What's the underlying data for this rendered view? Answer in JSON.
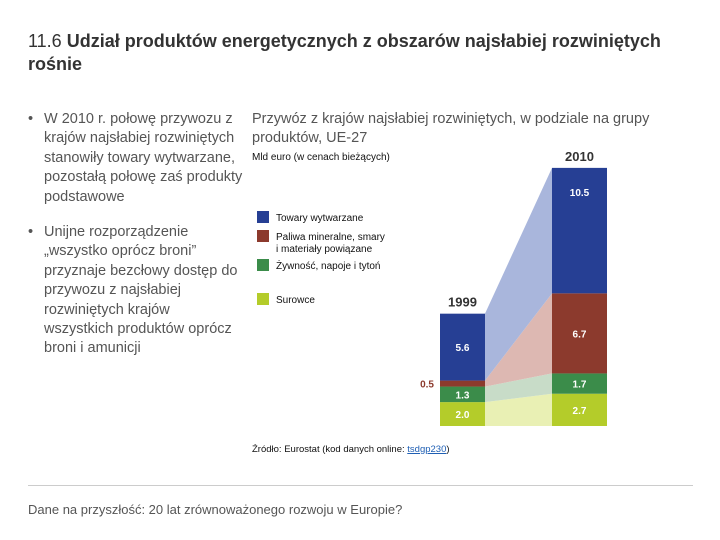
{
  "slide": {
    "title_number": "11.6",
    "title_text": "Udział produktów energetycznych z obszarów najsłabiej rozwiniętych rośnie",
    "bullet_symbol": "•",
    "bullets": [
      "W 2010 r. połowę przywozu z krajów najsłabiej rozwiniętych stanowiły towary wytwarzane, pozostałą połowę zaś produkty podstawowe",
      "Unijne rozporządzenie „wszystko oprócz broni” przyznaje bezcłowy dostęp do przywozu z najsłabiej rozwiniętych krajów wszystkich produktów oprócz broni i amunicji"
    ],
    "footer": "Dane na przyszłość: 20 lat zrównoważonego rozwoju w Europie?"
  },
  "chart_data": {
    "type": "bar",
    "title": "Przywóz z krajów najsłabiej rozwiniętych, w podziale na grupy produktów, UE-27",
    "unit": "Mld euro (w cenach bieżących)",
    "categories": [
      "1999",
      "2010"
    ],
    "series": [
      {
        "name": "Surowce",
        "values": [
          2.0,
          2.7
        ],
        "labels": [
          "2.0",
          "2.7"
        ],
        "color": "#b4cc2a",
        "band_color": "#e9f0b4"
      },
      {
        "name": "Żywność, napoje i tytoń",
        "values": [
          1.3,
          1.7
        ],
        "labels": [
          "1.3",
          "1.7"
        ],
        "color": "#3b8c4a",
        "band_color": "#c8dcc8"
      },
      {
        "name": "Paliwa mineralne, smary i materiały powiązane",
        "values": [
          0.5,
          6.7
        ],
        "labels": [
          "0.5",
          "6.7"
        ],
        "color": "#8c3a2d",
        "band_color": "#ddb8b2"
      },
      {
        "name": "Towary wytwarzane",
        "values": [
          5.6,
          10.5
        ],
        "labels": [
          "5.6",
          "10.5"
        ],
        "color": "#263f94",
        "band_color": "#a9b6dc"
      }
    ],
    "legend_order": [
      3,
      2,
      1,
      0
    ],
    "source_prefix": "Źródło: Eurostat (kod danych online: ",
    "source_code": "tsdgp230",
    "source_suffix": ")"
  }
}
